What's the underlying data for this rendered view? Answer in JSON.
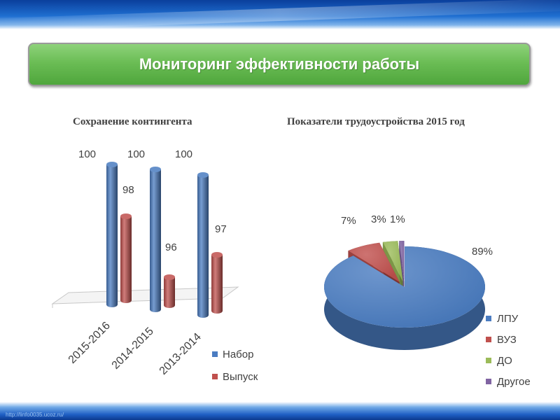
{
  "header": {
    "title": "Мониторинг эффективности работы"
  },
  "footer": {
    "watermark": "http://linfo0035.ucoz.ru/"
  },
  "colors": {
    "title_bg": "#6bbd55",
    "blue": "#4a7cc1",
    "red": "#c0504d",
    "green": "#9bbb59",
    "purple": "#8064a2"
  },
  "chart_data": [
    {
      "type": "bar",
      "title": "Сохранение контингента",
      "categories": [
        "2015-2016",
        "2014-2015",
        "2013-2014"
      ],
      "series": [
        {
          "name": "Набор",
          "values": [
            100,
            100,
            100
          ],
          "labels": [
            "100",
            "100",
            "100"
          ],
          "color": "#4a7cc1"
        },
        {
          "name": "Выпуск",
          "values": [
            98,
            96,
            97
          ],
          "labels": [
            "98",
            "96",
            "97"
          ],
          "color": "#c0504d"
        }
      ],
      "ylim": [
        95,
        100
      ],
      "legend": "right"
    },
    {
      "type": "pie",
      "title": "Показатели трудоустройства 2015 год",
      "slices": [
        {
          "name": "ЛПУ",
          "value": 89,
          "label": "89%",
          "color": "#4a7cc1"
        },
        {
          "name": "ВУЗ",
          "value": 7,
          "label": "7%",
          "color": "#c0504d"
        },
        {
          "name": "ДО",
          "value": 3,
          "label": "3%",
          "color": "#9bbb59"
        },
        {
          "name": "Другое",
          "value": 1,
          "label": "1%",
          "color": "#8064a2"
        }
      ],
      "legend": "right"
    }
  ]
}
